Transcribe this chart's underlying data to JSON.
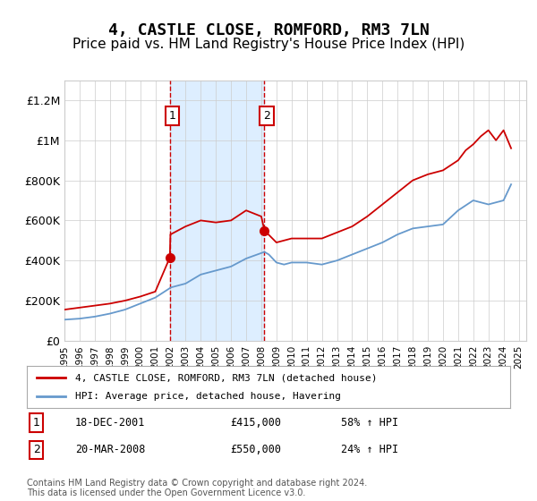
{
  "title": "4, CASTLE CLOSE, ROMFORD, RM3 7LN",
  "subtitle": "Price paid vs. HM Land Registry's House Price Index (HPI)",
  "title_fontsize": 13,
  "subtitle_fontsize": 11,
  "ylabel_ticks": [
    "£0",
    "£200K",
    "£400K",
    "£600K",
    "£800K",
    "£1M",
    "£1.2M"
  ],
  "ylabel_values": [
    0,
    200000,
    400000,
    600000,
    800000,
    1000000,
    1200000
  ],
  "ylim": [
    0,
    1300000
  ],
  "xlim_start": 1995.0,
  "xlim_end": 2025.5,
  "sale1_date": 2001.96,
  "sale1_price": 415000,
  "sale1_label": "1",
  "sale1_text": "18-DEC-2001",
  "sale1_pct": "58% ↑ HPI",
  "sale2_date": 2008.21,
  "sale2_price": 550000,
  "sale2_label": "2",
  "sale2_text": "20-MAR-2008",
  "sale2_pct": "24% ↑ HPI",
  "red_line_color": "#cc0000",
  "blue_line_color": "#6699cc",
  "shade_color": "#ddeeff",
  "marker_box_color": "#cc0000",
  "grid_color": "#cccccc",
  "background_color": "#ffffff",
  "legend_line1": "4, CASTLE CLOSE, ROMFORD, RM3 7LN (detached house)",
  "legend_line2": "HPI: Average price, detached house, Havering",
  "footer": "Contains HM Land Registry data © Crown copyright and database right 2024.\nThis data is licensed under the Open Government Licence v3.0.",
  "hpi_years": [
    1995,
    1996,
    1997,
    1998,
    1999,
    2000,
    2001,
    2001.96,
    2002,
    2003,
    2004,
    2005,
    2006,
    2007,
    2008.21,
    2008.5,
    2009,
    2009.5,
    2010,
    2011,
    2012,
    2013,
    2014,
    2015,
    2016,
    2017,
    2018,
    2019,
    2020,
    2021,
    2022,
    2023,
    2024,
    2024.5
  ],
  "hpi_values": [
    105000,
    110000,
    120000,
    135000,
    155000,
    185000,
    215000,
    262000,
    265000,
    285000,
    330000,
    350000,
    370000,
    410000,
    443000,
    430000,
    390000,
    380000,
    390000,
    390000,
    380000,
    400000,
    430000,
    460000,
    490000,
    530000,
    560000,
    570000,
    580000,
    650000,
    700000,
    680000,
    700000,
    780000
  ],
  "red_years": [
    1995,
    1996,
    1997,
    1998,
    1999,
    2000,
    2001,
    2001.96,
    2002,
    2003,
    2004,
    2005,
    2006,
    2007,
    2008,
    2008.21,
    2009,
    2010,
    2011,
    2012,
    2013,
    2014,
    2015,
    2016,
    2017,
    2018,
    2019,
    2020,
    2021,
    2021.5,
    2022,
    2022.5,
    2023,
    2023.5,
    2024,
    2024.5
  ],
  "red_values": [
    155000,
    165000,
    175000,
    185000,
    200000,
    220000,
    245000,
    415000,
    530000,
    570000,
    600000,
    590000,
    600000,
    650000,
    620000,
    550000,
    490000,
    510000,
    510000,
    510000,
    540000,
    570000,
    620000,
    680000,
    740000,
    800000,
    830000,
    850000,
    900000,
    950000,
    980000,
    1020000,
    1050000,
    1000000,
    1050000,
    960000
  ]
}
